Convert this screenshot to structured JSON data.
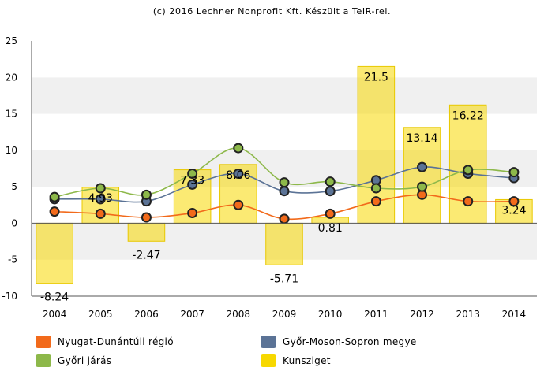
{
  "credit": "(c) 2016 Lechner Nonprofit Kft. Készült a TeIR-rel.",
  "chart_data": {
    "type": "bar+line",
    "x": [
      "2004",
      "2005",
      "2006",
      "2007",
      "2008",
      "2009",
      "2010",
      "2011",
      "2012",
      "2013",
      "2014"
    ],
    "ylim": [
      -10,
      25
    ],
    "yticks": [
      -10,
      -5,
      0,
      5,
      10,
      15,
      20,
      25
    ],
    "grid": "horizontal bands",
    "legend_position": "bottom",
    "bar_series": {
      "name": "Kunsziget",
      "color": "#f7d800",
      "values": [
        -8.24,
        4.93,
        -2.47,
        7.33,
        8.06,
        -5.71,
        0.81,
        21.5,
        13.14,
        16.22,
        3.24
      ],
      "labels": [
        "-8.24",
        "4.93",
        "-2.47",
        "7.33",
        "8.06",
        "-5.71",
        "0.81",
        "21.5",
        "13.14",
        "16.22",
        "3.24"
      ]
    },
    "line_series": [
      {
        "name": "Nyugat-Dunántúli régió",
        "color": "#f26a1b",
        "values": [
          1.6,
          1.3,
          0.8,
          1.4,
          2.5,
          0.6,
          1.3,
          3.0,
          3.9,
          3.0,
          3.0
        ]
      },
      {
        "name": "Győr-Moson-Sopron megye",
        "color": "#5b7396",
        "values": [
          3.3,
          3.3,
          3.0,
          5.3,
          6.8,
          4.4,
          4.4,
          5.9,
          7.7,
          6.8,
          6.2
        ]
      },
      {
        "name": "Győri járás",
        "color": "#8db84a",
        "values": [
          3.6,
          4.8,
          3.9,
          6.8,
          10.3,
          5.6,
          5.7,
          4.8,
          5.0,
          7.3,
          7.0
        ]
      }
    ]
  },
  "legend": [
    {
      "label": "Nyugat-Dunántúli régió",
      "color": "#f26a1b"
    },
    {
      "label": "Győr-Moson-Sopron megye",
      "color": "#5b7396"
    },
    {
      "label": "Győri járás",
      "color": "#8db84a"
    },
    {
      "label": "Kunsziget",
      "color": "#f7d800"
    }
  ]
}
